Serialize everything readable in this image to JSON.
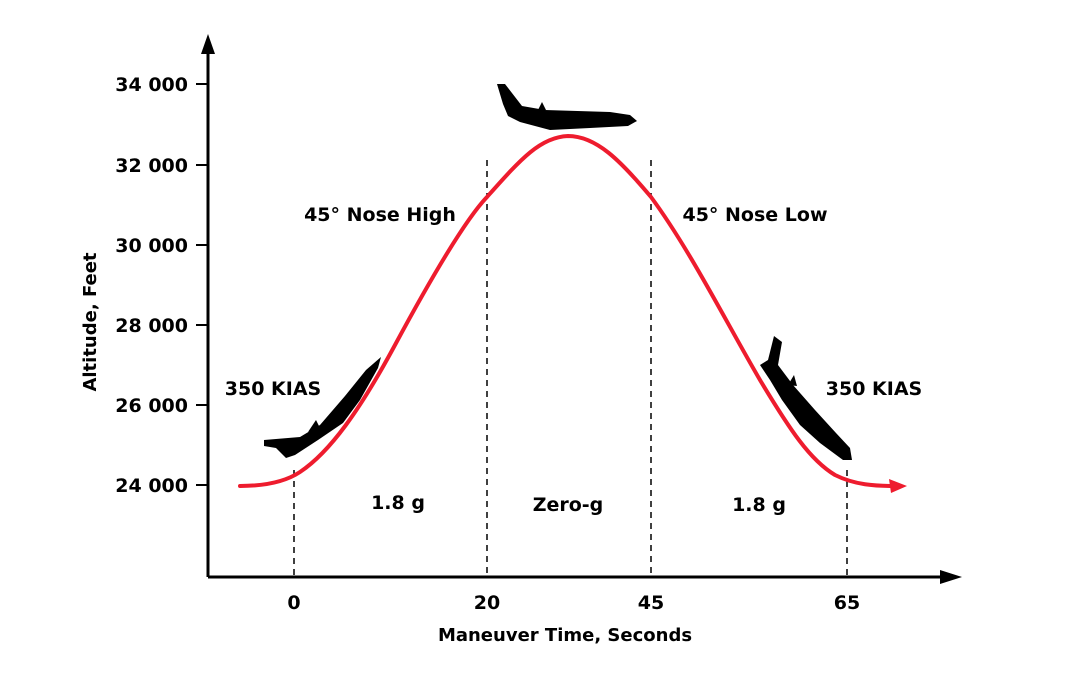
{
  "chart_data": {
    "type": "line",
    "xlabel": "Maneuver Time, Seconds",
    "ylabel": "Altitude, Feet",
    "x_ticks": [
      "0",
      "20",
      "45",
      "65"
    ],
    "y_ticks": [
      "24 000",
      "26 000",
      "28 000",
      "30 000",
      "32 000",
      "34 000"
    ],
    "markers": [
      {
        "x": 0,
        "label": "0"
      },
      {
        "x": 20,
        "label": "20"
      },
      {
        "x": 45,
        "label": "45"
      },
      {
        "x": 65,
        "label": "65"
      }
    ],
    "series": [
      {
        "color": "#ee1c2e",
        "points": [
          {
            "x": 0,
            "y": 24300
          },
          {
            "x": 20,
            "y": 31100
          },
          {
            "x": 31,
            "y": 32700
          },
          {
            "x": 45,
            "y": 31100
          },
          {
            "x": 65,
            "y": 24300
          }
        ]
      }
    ],
    "annotations": {
      "nose_high": "45° Nose High",
      "nose_low": "45° Nose Low",
      "kias_left": "350 KIAS",
      "kias_right": "350 KIAS",
      "g_left": "1.8 g",
      "zero_g": "Zero-g",
      "g_right": "1.8 g"
    },
    "grid": false,
    "legend": "none"
  }
}
